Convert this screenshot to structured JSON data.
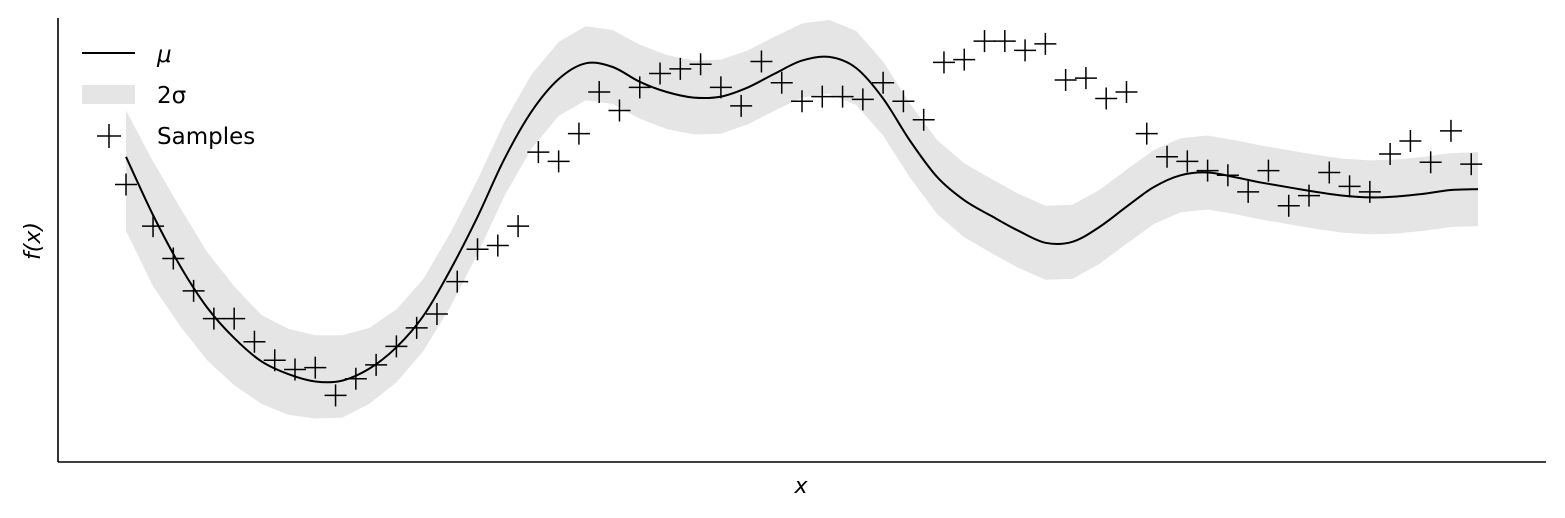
{
  "chart_data": {
    "type": "line",
    "xlabel": "x",
    "ylabel": "f(x)",
    "xlim": [
      0,
      10
    ],
    "ylim": [
      -2.5,
      2.3
    ],
    "grid": false,
    "x_ticks_visible": false,
    "y_ticks_visible": false,
    "legend": {
      "placement": "top-left",
      "entries": [
        {
          "label": "μ",
          "kind": "line",
          "italic": true
        },
        {
          "label": "2σ",
          "kind": "band",
          "italic": false
        },
        {
          "label": "Samples",
          "kind": "marker",
          "italic": false
        }
      ]
    },
    "colors": {
      "line": "#000000",
      "band": "#e5e5e5",
      "marker": "#000000"
    },
    "series": [
      {
        "name": "μ",
        "type": "line",
        "x": [
          0.0,
          0.2,
          0.4,
          0.6,
          0.8,
          1.0,
          1.2,
          1.4,
          1.6,
          1.8,
          2.0,
          2.2,
          2.4,
          2.6,
          2.8,
          3.0,
          3.2,
          3.4,
          3.6,
          3.8,
          4.0,
          4.2,
          4.4,
          4.6,
          4.8,
          5.0,
          5.2,
          5.4,
          5.6,
          5.8,
          6.0,
          6.2,
          6.4,
          6.6,
          6.8,
          7.0,
          7.2,
          7.4,
          7.6,
          7.8,
          8.0,
          8.2,
          8.4,
          8.6,
          8.8,
          9.0,
          9.2,
          9.4,
          9.6,
          9.8,
          10.0
        ],
        "y": [
          0.8,
          0.17,
          -0.38,
          -0.83,
          -1.16,
          -1.41,
          -1.55,
          -1.63,
          -1.62,
          -1.49,
          -1.26,
          -0.92,
          -0.42,
          0.15,
          0.78,
          1.29,
          1.64,
          1.81,
          1.77,
          1.61,
          1.5,
          1.44,
          1.45,
          1.55,
          1.7,
          1.84,
          1.88,
          1.76,
          1.43,
          0.97,
          0.58,
          0.33,
          0.16,
          0.0,
          -0.13,
          -0.12,
          0.04,
          0.26,
          0.47,
          0.6,
          0.63,
          0.58,
          0.52,
          0.47,
          0.42,
          0.38,
          0.36,
          0.37,
          0.4,
          0.44,
          0.45
        ]
      },
      {
        "name": "2σ",
        "type": "band",
        "x": [
          0.0,
          0.2,
          0.4,
          0.6,
          0.8,
          1.0,
          1.2,
          1.4,
          1.6,
          1.8,
          2.0,
          2.2,
          2.4,
          2.6,
          2.8,
          3.0,
          3.2,
          3.4,
          3.6,
          3.8,
          4.0,
          4.2,
          4.4,
          4.6,
          4.8,
          5.0,
          5.2,
          5.4,
          5.6,
          5.8,
          6.0,
          6.2,
          6.4,
          6.6,
          6.8,
          7.0,
          7.2,
          7.4,
          7.6,
          7.8,
          8.0,
          8.2,
          8.4,
          8.6,
          8.8,
          9.0,
          9.2,
          9.4,
          9.6,
          9.8,
          10.0
        ],
        "lower": [
          0.0,
          -0.6,
          -1.03,
          -1.4,
          -1.67,
          -1.87,
          -1.99,
          -2.03,
          -2.02,
          -1.87,
          -1.64,
          -1.3,
          -0.82,
          -0.25,
          0.38,
          0.89,
          1.24,
          1.41,
          1.37,
          1.21,
          1.1,
          1.04,
          1.05,
          1.15,
          1.3,
          1.44,
          1.48,
          1.36,
          1.03,
          0.57,
          0.18,
          -0.07,
          -0.24,
          -0.4,
          -0.53,
          -0.52,
          -0.36,
          -0.14,
          0.07,
          0.2,
          0.23,
          0.18,
          0.12,
          0.07,
          0.02,
          -0.02,
          -0.04,
          -0.03,
          0.0,
          0.04,
          0.05
        ],
        "upper": [
          1.3,
          0.75,
          0.25,
          -0.23,
          -0.6,
          -0.91,
          -1.06,
          -1.13,
          -1.13,
          -1.05,
          -0.85,
          -0.52,
          -0.02,
          0.55,
          1.18,
          1.69,
          2.04,
          2.21,
          2.17,
          2.01,
          1.9,
          1.84,
          1.85,
          1.95,
          2.1,
          2.24,
          2.28,
          2.16,
          1.83,
          1.37,
          0.98,
          0.73,
          0.56,
          0.4,
          0.27,
          0.28,
          0.44,
          0.66,
          0.87,
          1.0,
          1.03,
          0.98,
          0.92,
          0.87,
          0.82,
          0.78,
          0.76,
          0.77,
          0.8,
          0.84,
          0.85
        ]
      },
      {
        "name": "Samples",
        "type": "scatter",
        "x": [
          0.0,
          0.2,
          0.35,
          0.5,
          0.65,
          0.8,
          0.95,
          1.1,
          1.25,
          1.4,
          1.55,
          1.7,
          1.85,
          2.0,
          2.15,
          2.3,
          2.45,
          2.6,
          2.75,
          2.9,
          3.05,
          3.2,
          3.35,
          3.5,
          3.65,
          3.8,
          3.95,
          4.1,
          4.25,
          4.4,
          4.55,
          4.7,
          4.85,
          5.0,
          5.15,
          5.3,
          5.45,
          5.6,
          5.75,
          5.9,
          6.05,
          6.2,
          6.35,
          6.5,
          6.65,
          6.8,
          6.95,
          7.1,
          7.25,
          7.4,
          7.55,
          7.7,
          7.85,
          8.0,
          8.15,
          8.3,
          8.45,
          8.6,
          8.75,
          8.9,
          9.05,
          9.2,
          9.35,
          9.5,
          9.65,
          9.8,
          9.95
        ],
        "y": [
          0.5,
          0.05,
          -0.3,
          -0.65,
          -0.95,
          -0.95,
          -1.2,
          -1.4,
          -1.5,
          -1.48,
          -1.78,
          -1.6,
          -1.45,
          -1.25,
          -1.05,
          -0.9,
          -0.55,
          -0.2,
          -0.16,
          0.05,
          0.85,
          0.75,
          1.05,
          1.5,
          1.3,
          1.55,
          1.7,
          1.75,
          1.8,
          1.55,
          1.35,
          1.83,
          1.6,
          1.4,
          1.45,
          1.45,
          1.42,
          1.6,
          1.4,
          1.2,
          1.82,
          1.85,
          2.05,
          2.05,
          1.95,
          2.02,
          1.63,
          1.65,
          1.43,
          1.5,
          1.05,
          0.8,
          0.75,
          0.65,
          0.6,
          0.42,
          0.65,
          0.27,
          0.38,
          0.63,
          0.48,
          0.42,
          0.83,
          0.97,
          0.74,
          1.08,
          0.72
        ]
      }
    ]
  }
}
